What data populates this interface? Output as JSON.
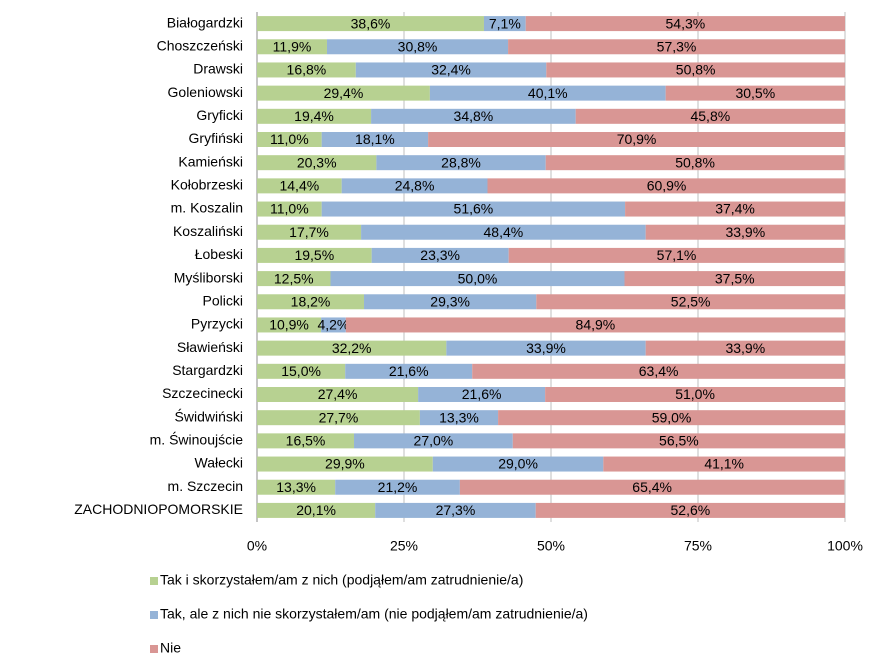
{
  "chart_data": {
    "type": "stacked-bar-horizontal",
    "categories": [
      "Białogardzki",
      "Choszczeński",
      "Drawski",
      "Goleniowski",
      "Gryficki",
      "Gryfiński",
      "Kamieński",
      "Kołobrzeski",
      "m. Koszalin",
      "Koszaliński",
      "Łobeski",
      "Myśliborski",
      "Policki",
      "Pyrzycki",
      "Sławieński",
      "Stargardzki",
      "Szczecinecki",
      "Świdwiński",
      "m. Świnoujście",
      "Wałecki",
      "m. Szczecin",
      "ZACHODNIOPOMORSKIE"
    ],
    "series": [
      {
        "name": "Tak i skorzystałem/am z nich (podjąłem/am zatrudnienie/a)",
        "color": "#b7d191",
        "values": [
          38.6,
          11.9,
          16.8,
          29.4,
          19.4,
          11.0,
          20.3,
          14.4,
          11.0,
          17.7,
          19.5,
          12.5,
          18.2,
          10.9,
          32.2,
          15.0,
          27.4,
          27.7,
          16.5,
          29.9,
          13.3,
          20.1
        ],
        "value_labels": [
          "38,6%",
          "11,9%",
          "16,8%",
          "29,4%",
          "19,4%",
          "11,0%",
          "20,3%",
          "14,4%",
          "11,0%",
          "17,7%",
          "19,5%",
          "12,5%",
          "18,2%",
          "10,9%",
          "32,2%",
          "15,0%",
          "27,4%",
          "27,7%",
          "16,5%",
          "29,9%",
          "13,3%",
          "20,1%"
        ]
      },
      {
        "name": "Tak, ale z nich nie skorzystałem/am (nie podjąłem/am zatrudnienie/a)",
        "color": "#95b3d7",
        "values": [
          7.1,
          30.8,
          32.4,
          40.1,
          34.8,
          18.1,
          28.8,
          24.8,
          51.6,
          48.4,
          23.3,
          50.0,
          29.3,
          4.2,
          33.9,
          21.6,
          21.6,
          13.3,
          27.0,
          29.0,
          21.2,
          27.3
        ],
        "value_labels": [
          "7,1%",
          "30,8%",
          "32,4%",
          "40,1%",
          "34,8%",
          "18,1%",
          "28,8%",
          "24,8%",
          "51,6%",
          "48,4%",
          "23,3%",
          "50,0%",
          "29,3%",
          "4,2%",
          "33,9%",
          "21,6%",
          "21,6%",
          "13,3%",
          "27,0%",
          "29,0%",
          "21,2%",
          "27,3%"
        ]
      },
      {
        "name": "Nie",
        "color": "#d99694",
        "values": [
          54.3,
          57.3,
          50.8,
          30.5,
          45.8,
          70.9,
          50.8,
          60.9,
          37.4,
          33.9,
          57.1,
          37.5,
          52.5,
          84.9,
          33.9,
          63.4,
          51.0,
          59.0,
          56.5,
          41.1,
          65.4,
          52.6
        ],
        "value_labels": [
          "54,3%",
          "57,3%",
          "50,8%",
          "30,5%",
          "45,8%",
          "70,9%",
          "50,8%",
          "60,9%",
          "37,4%",
          "33,9%",
          "57,1%",
          "37,5%",
          "52,5%",
          "84,9%",
          "33,9%",
          "63,4%",
          "51,0%",
          "59,0%",
          "56,5%",
          "41,1%",
          "65,4%",
          "52,6%"
        ]
      }
    ],
    "xlim": [
      0,
      100
    ],
    "xticks": [
      {
        "value": 0,
        "label": "0%"
      },
      {
        "value": 25,
        "label": "25%"
      },
      {
        "value": 50,
        "label": "50%"
      },
      {
        "value": 75,
        "label": "75%"
      },
      {
        "value": 100,
        "label": "100%"
      }
    ],
    "grid": true,
    "legend": "bottom"
  }
}
